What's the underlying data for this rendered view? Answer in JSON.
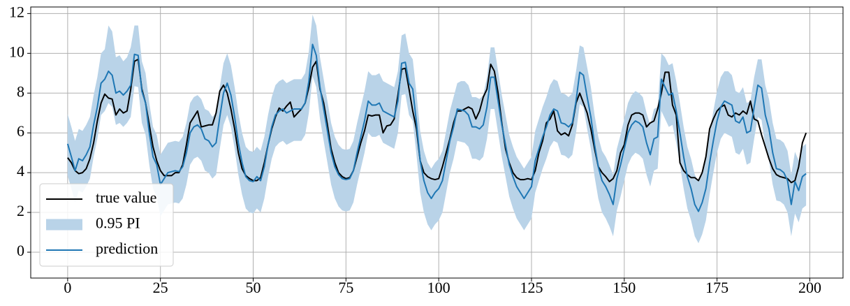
{
  "chart_data": {
    "type": "line",
    "x": [
      0,
      1,
      2,
      3,
      4,
      5,
      6,
      7,
      8,
      9,
      10,
      11,
      12,
      13,
      14,
      15,
      16,
      17,
      18,
      19,
      20,
      21,
      22,
      23,
      24,
      25,
      26,
      27,
      28,
      29,
      30,
      31,
      32,
      33,
      34,
      35,
      36,
      37,
      38,
      39,
      40,
      41,
      42,
      43,
      44,
      45,
      46,
      47,
      48,
      49,
      50,
      51,
      52,
      53,
      54,
      55,
      56,
      57,
      58,
      59,
      60,
      61,
      62,
      63,
      64,
      65,
      66,
      67,
      68,
      69,
      70,
      71,
      72,
      73,
      74,
      75,
      76,
      77,
      78,
      79,
      80,
      81,
      82,
      83,
      84,
      85,
      86,
      87,
      88,
      89,
      90,
      91,
      92,
      93,
      94,
      95,
      96,
      97,
      98,
      99,
      100,
      101,
      102,
      103,
      104,
      105,
      106,
      107,
      108,
      109,
      110,
      111,
      112,
      113,
      114,
      115,
      116,
      117,
      118,
      119,
      120,
      121,
      122,
      123,
      124,
      125,
      126,
      127,
      128,
      129,
      130,
      131,
      132,
      133,
      134,
      135,
      136,
      137,
      138,
      139,
      140,
      141,
      142,
      143,
      144,
      145,
      146,
      147,
      148,
      149,
      150,
      151,
      152,
      153,
      154,
      155,
      156,
      157,
      158,
      159,
      160,
      161,
      162,
      163,
      164,
      165,
      166,
      167,
      168,
      169,
      170,
      171,
      172,
      173,
      174,
      175,
      176,
      177,
      178,
      179,
      180,
      181,
      182,
      183,
      184,
      185,
      186,
      187,
      188,
      189,
      190,
      191,
      192,
      193,
      194,
      195,
      196,
      197,
      198,
      199
    ],
    "series": [
      {
        "name": "true value",
        "color": "#000000",
        "values": [
          4.75,
          4.5,
          4.1,
          3.95,
          4.0,
          4.2,
          4.7,
          5.5,
          6.6,
          7.5,
          7.95,
          7.75,
          7.7,
          6.9,
          7.2,
          7.0,
          7.1,
          8.2,
          9.6,
          9.7,
          8.2,
          7.5,
          6.4,
          5.3,
          4.6,
          4.1,
          3.85,
          3.85,
          3.85,
          4.0,
          4.0,
          4.4,
          5.4,
          6.5,
          6.8,
          7.1,
          6.3,
          6.35,
          6.4,
          6.4,
          7.0,
          8.1,
          8.4,
          8.0,
          7.2,
          6.2,
          5.0,
          4.2,
          3.85,
          3.7,
          3.6,
          3.6,
          3.75,
          4.5,
          5.4,
          6.2,
          6.8,
          7.25,
          7.1,
          7.35,
          7.55,
          6.8,
          7.0,
          7.2,
          7.5,
          8.3,
          9.3,
          9.6,
          8.2,
          7.5,
          6.4,
          5.2,
          4.5,
          4.0,
          3.8,
          3.7,
          3.75,
          4.1,
          4.8,
          5.5,
          6.1,
          6.9,
          6.85,
          6.9,
          6.9,
          6.0,
          6.35,
          6.4,
          6.7,
          7.9,
          9.2,
          9.25,
          8.2,
          7.1,
          6.2,
          4.6,
          4.0,
          3.8,
          3.7,
          3.65,
          3.7,
          4.3,
          5.0,
          5.7,
          6.5,
          7.1,
          7.1,
          7.2,
          7.3,
          7.2,
          6.7,
          7.1,
          7.8,
          8.2,
          9.45,
          9.1,
          8.0,
          6.5,
          5.2,
          4.5,
          4.0,
          3.75,
          3.65,
          3.65,
          3.7,
          3.65,
          4.1,
          5.0,
          5.6,
          6.5,
          6.7,
          7.1,
          6.1,
          5.9,
          6.0,
          5.85,
          6.4,
          7.5,
          8.0,
          7.5,
          7.0,
          6.2,
          5.2,
          4.3,
          4.0,
          3.8,
          3.55,
          3.7,
          4.1,
          5.0,
          5.4,
          6.4,
          6.9,
          7.0,
          7.0,
          6.9,
          6.3,
          6.5,
          6.6,
          7.2,
          8.0,
          9.05,
          9.05,
          7.4,
          6.9,
          4.5,
          4.1,
          3.9,
          3.75,
          3.75,
          3.6,
          4.0,
          4.8,
          6.2,
          6.7,
          7.1,
          7.3,
          7.4,
          6.9,
          6.8,
          7.0,
          6.9,
          7.1,
          6.95,
          7.6,
          6.7,
          6.6,
          5.9,
          5.3,
          4.7,
          4.2,
          3.9,
          3.8,
          3.75,
          3.7,
          3.5,
          3.6,
          4.3,
          5.5,
          6.0
        ]
      },
      {
        "name": "0.95 PI",
        "color": "#b9d3e8",
        "upper": [
          6.95,
          6.3,
          5.6,
          6.2,
          6.1,
          6.4,
          6.8,
          7.9,
          8.8,
          10.0,
          10.2,
          11.4,
          11.1,
          9.8,
          9.9,
          9.6,
          9.8,
          10.3,
          11.4,
          11.4,
          9.6,
          9.0,
          7.5,
          6.3,
          5.9,
          4.9,
          5.2,
          5.5,
          5.55,
          5.6,
          5.55,
          5.8,
          6.5,
          7.5,
          7.8,
          7.9,
          7.7,
          7.2,
          7.1,
          6.8,
          7.0,
          8.3,
          9.5,
          10.0,
          9.4,
          8.3,
          7.0,
          6.0,
          5.3,
          5.1,
          5.05,
          5.3,
          5.1,
          5.8,
          6.9,
          7.8,
          8.4,
          8.6,
          8.7,
          8.5,
          8.6,
          8.7,
          8.7,
          8.7,
          9.0,
          10.1,
          11.95,
          11.4,
          9.8,
          8.7,
          7.6,
          6.5,
          5.8,
          5.4,
          5.2,
          5.15,
          5.2,
          5.6,
          6.5,
          7.3,
          8.1,
          9.1,
          8.9,
          8.9,
          9.0,
          8.6,
          8.5,
          8.4,
          8.3,
          9.1,
          10.9,
          11.0,
          10.0,
          9.7,
          8.0,
          6.1,
          5.1,
          4.5,
          4.2,
          4.5,
          4.7,
          5.1,
          6.1,
          7.1,
          7.8,
          8.5,
          8.6,
          8.6,
          8.4,
          7.8,
          7.8,
          7.7,
          7.9,
          8.8,
          10.3,
          10.3,
          9.1,
          7.9,
          6.9,
          5.9,
          5.3,
          4.8,
          4.5,
          4.2,
          4.5,
          4.8,
          6.1,
          6.7,
          7.3,
          7.8,
          8.4,
          8.7,
          8.6,
          8.0,
          7.95,
          7.8,
          8.0,
          9.1,
          10.4,
          10.3,
          9.3,
          8.3,
          6.9,
          5.8,
          5.1,
          4.8,
          4.4,
          3.9,
          5.2,
          5.9,
          6.7,
          7.5,
          7.9,
          8.1,
          8.0,
          7.8,
          7.0,
          6.4,
          7.2,
          7.3,
          10.0,
          9.8,
          9.4,
          9.5,
          8.6,
          7.5,
          6.3,
          5.3,
          4.7,
          3.9,
          3.55,
          4.0,
          4.7,
          6.0,
          7.1,
          8.1,
          8.8,
          9.1,
          9.1,
          8.9,
          8.1,
          8.0,
          8.3,
          7.5,
          7.6,
          8.8,
          9.7,
          9.7,
          8.4,
          7.7,
          6.5,
          5.7,
          5.65,
          5.5,
          5.1,
          3.9,
          5.05,
          4.6,
          5.3,
          5.45
        ],
        "lower": [
          3.85,
          3.2,
          2.5,
          3.1,
          3.0,
          3.3,
          3.7,
          4.8,
          5.7,
          6.9,
          7.1,
          7.5,
          7.3,
          6.4,
          6.5,
          6.3,
          6.5,
          6.8,
          8.35,
          8.3,
          6.5,
          5.9,
          4.4,
          3.2,
          2.8,
          1.8,
          2.1,
          2.4,
          2.45,
          2.5,
          2.45,
          2.7,
          3.4,
          4.4,
          4.7,
          4.8,
          4.6,
          4.1,
          4.0,
          3.7,
          3.9,
          5.2,
          6.4,
          6.9,
          6.3,
          5.2,
          3.9,
          2.9,
          2.2,
          2.0,
          1.95,
          2.2,
          2.0,
          2.7,
          3.8,
          4.7,
          5.3,
          5.5,
          5.6,
          5.4,
          5.5,
          5.6,
          5.6,
          5.6,
          5.9,
          7.0,
          8.85,
          8.3,
          6.7,
          5.6,
          4.5,
          3.4,
          2.7,
          2.3,
          2.1,
          2.05,
          2.1,
          2.5,
          3.4,
          4.2,
          5.0,
          6.0,
          5.8,
          5.8,
          5.9,
          5.5,
          5.4,
          5.3,
          5.2,
          6.0,
          7.9,
          7.95,
          6.9,
          6.6,
          4.9,
          3.0,
          2.0,
          1.4,
          1.1,
          1.4,
          1.6,
          2.0,
          3.0,
          4.0,
          4.7,
          5.6,
          5.55,
          5.5,
          5.3,
          4.7,
          4.7,
          4.6,
          4.8,
          5.7,
          7.2,
          7.2,
          6.0,
          4.8,
          3.8,
          2.8,
          2.2,
          1.7,
          1.4,
          1.1,
          1.4,
          1.7,
          3.0,
          3.6,
          4.2,
          4.7,
          5.3,
          5.6,
          5.5,
          4.9,
          4.85,
          4.7,
          4.9,
          6.0,
          7.45,
          7.3,
          6.2,
          5.2,
          3.8,
          2.7,
          2.0,
          1.7,
          1.3,
          0.8,
          2.1,
          2.8,
          3.6,
          4.4,
          4.8,
          5.0,
          4.9,
          4.7,
          3.9,
          3.3,
          4.1,
          4.2,
          7.1,
          6.7,
          6.3,
          6.4,
          5.5,
          4.4,
          3.2,
          2.2,
          1.6,
          0.8,
          0.45,
          0.9,
          1.6,
          2.9,
          4.0,
          5.0,
          5.7,
          6.0,
          5.9,
          5.8,
          5.0,
          4.9,
          5.2,
          4.4,
          4.5,
          5.7,
          6.8,
          6.65,
          5.3,
          4.6,
          3.4,
          2.6,
          2.55,
          2.4,
          2.0,
          0.8,
          1.95,
          1.5,
          2.2,
          2.35
        ]
      },
      {
        "name": "prediction",
        "color": "#1f77b4",
        "values": [
          5.45,
          4.8,
          4.1,
          4.7,
          4.6,
          4.9,
          5.3,
          6.4,
          7.3,
          8.5,
          8.7,
          9.1,
          8.9,
          8.0,
          8.1,
          7.9,
          8.1,
          8.4,
          9.95,
          9.9,
          8.1,
          7.5,
          6.0,
          4.8,
          4.4,
          3.4,
          3.7,
          4.0,
          4.05,
          4.1,
          4.05,
          4.3,
          5.0,
          6.0,
          6.3,
          6.4,
          6.2,
          5.7,
          5.6,
          5.3,
          5.5,
          6.8,
          8.0,
          8.5,
          7.9,
          6.8,
          5.5,
          4.5,
          3.8,
          3.6,
          3.55,
          3.8,
          3.6,
          4.3,
          5.4,
          6.3,
          6.9,
          7.1,
          7.2,
          7.0,
          7.1,
          7.2,
          7.2,
          7.2,
          7.5,
          8.6,
          10.45,
          9.9,
          8.3,
          7.2,
          6.1,
          5.0,
          4.3,
          3.9,
          3.7,
          3.65,
          3.7,
          4.1,
          5.0,
          5.8,
          6.6,
          7.6,
          7.4,
          7.4,
          7.5,
          7.1,
          7.0,
          6.9,
          6.8,
          7.6,
          9.5,
          9.55,
          8.5,
          8.2,
          6.5,
          4.6,
          3.6,
          3.0,
          2.7,
          3.0,
          3.2,
          3.6,
          4.6,
          5.6,
          6.3,
          7.2,
          7.15,
          7.1,
          6.9,
          6.3,
          6.3,
          6.2,
          6.4,
          7.3,
          8.8,
          8.8,
          7.6,
          6.4,
          5.4,
          4.4,
          3.8,
          3.3,
          3.0,
          2.7,
          3.0,
          3.3,
          4.6,
          5.2,
          5.8,
          6.3,
          6.9,
          7.2,
          7.1,
          6.5,
          6.45,
          6.3,
          6.5,
          7.6,
          9.05,
          8.9,
          7.8,
          6.8,
          5.4,
          4.3,
          3.6,
          3.3,
          2.9,
          2.4,
          3.7,
          4.4,
          5.2,
          6.0,
          6.4,
          6.6,
          6.5,
          6.3,
          5.5,
          4.9,
          5.7,
          5.8,
          8.7,
          8.3,
          7.9,
          8.0,
          7.1,
          6.0,
          4.8,
          3.8,
          3.2,
          2.4,
          2.05,
          2.5,
          3.2,
          4.5,
          5.6,
          6.6,
          7.3,
          7.6,
          7.5,
          7.4,
          6.6,
          6.5,
          6.8,
          6.0,
          6.1,
          7.3,
          8.4,
          8.25,
          6.9,
          6.2,
          5.0,
          4.2,
          4.15,
          4.0,
          3.6,
          2.4,
          3.55,
          3.1,
          3.8,
          3.95
        ]
      }
    ],
    "xlim": [
      -9.95,
      208.95
    ],
    "ylim": [
      -1.3,
      12.33
    ],
    "xticks": [
      0,
      25,
      50,
      75,
      100,
      125,
      150,
      175,
      200
    ],
    "yticks": [
      0,
      2,
      4,
      6,
      8,
      10,
      12
    ],
    "grid": true,
    "legend": "lower left"
  }
}
